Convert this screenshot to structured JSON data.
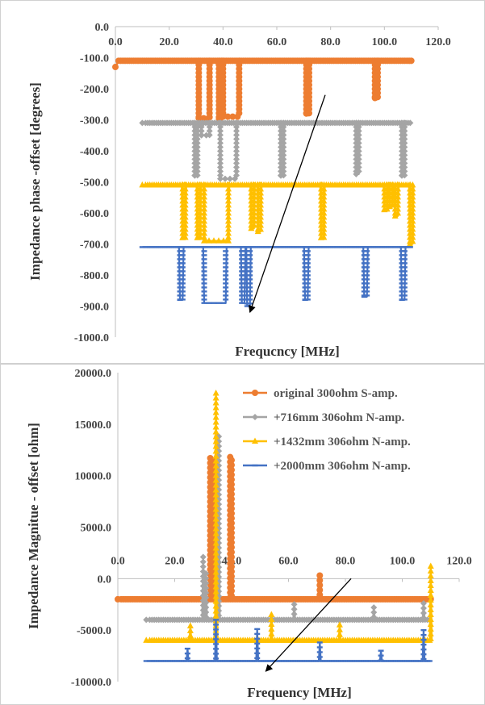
{
  "chart_data": [
    {
      "type": "line",
      "xlabel": "Frequcncy [MHz]",
      "ylabel": "Impedance    phase -offset  [degrees]",
      "xlim": [
        0,
        120
      ],
      "ylim": [
        -1000,
        0
      ],
      "xticks": [
        "0.0",
        "20.0",
        "40.0",
        "60.0",
        "80.0",
        "100.0",
        "120.0"
      ],
      "yticks": [
        "0.0",
        "-100.0",
        "-200.0",
        "-300.0",
        "-400.0",
        "-500.0",
        "-600.0",
        "-700.0",
        "-800.0",
        "-900.0",
        "-1000.0"
      ],
      "legend": "none",
      "annotation": "arrow from (78,-220) to (50,-920)",
      "series": [
        {
          "color": "#ED7D31",
          "marker": "circle",
          "baseline": -110,
          "start": [
            0,
            -130
          ],
          "end": 110,
          "dips": [
            [
              31,
              35,
              -295
            ],
            [
              38.5,
              39.5,
              -300
            ],
            [
              40,
              46,
              -290
            ],
            [
              71,
              72,
              -280
            ],
            [
              96.5,
              97.5,
              -230
            ]
          ]
        },
        {
          "color": "#A5A5A5",
          "marker": "diamond",
          "baseline": -310,
          "start": [
            10,
            -310
          ],
          "end": 110,
          "dips": [
            [
              29.5,
              30.5,
              -480
            ],
            [
              32,
              35,
              -350
            ],
            [
              39,
              45,
              -490
            ],
            [
              61.5,
              62.5,
              -480
            ],
            [
              89.5,
              90.5,
              -475
            ],
            [
              106.5,
              107.5,
              -480
            ]
          ]
        },
        {
          "color": "#FFC000",
          "marker": "triangle",
          "baseline": -510,
          "start": [
            10,
            -510
          ],
          "end": 110,
          "dips": [
            [
              25,
              26,
              -680
            ],
            [
              30.5,
              31.5,
              -680
            ],
            [
              33,
              42,
              -690
            ],
            [
              50.5,
              51.5,
              -650
            ],
            [
              53,
              54,
              -660
            ],
            [
              76.5,
              77.5,
              -680
            ],
            [
              100,
              101,
              -590
            ],
            [
              102,
              103,
              -580
            ],
            [
              104,
              105,
              -610
            ],
            [
              109.5,
              110.5,
              -700
            ]
          ]
        },
        {
          "color": "#4472C4",
          "marker": "dash",
          "baseline": -710,
          "start": [
            10,
            -710
          ],
          "end": 110,
          "dips": [
            [
              24,
              25,
              -880
            ],
            [
              33,
              41,
              -890
            ],
            [
              47,
              48,
              -890
            ],
            [
              49,
              50,
              -900
            ],
            [
              70.5,
              71.5,
              -880
            ],
            [
              92.5,
              93.5,
              -870
            ],
            [
              106.5,
              107.5,
              -880
            ]
          ]
        }
      ]
    },
    {
      "type": "line",
      "xlabel": "Frequency [MHz]",
      "ylabel": "Impedance    Magnitue - offset [ohm]",
      "xlim": [
        0,
        120
      ],
      "ylim": [
        -10000,
        20000
      ],
      "xticks": [
        "0.0",
        "20.0",
        "40.0",
        "60.0",
        "80.0",
        "100.0",
        "120.0"
      ],
      "yticks": [
        "20000.0",
        "15000.0",
        "10000.0",
        "5000.0",
        "0.0",
        "-5000.0",
        "-10000.0"
      ],
      "legend": "top-right",
      "annotation": "arrow from (82,0) to (52,-9000)",
      "series": [
        {
          "name": "original 300ohm S-amp.",
          "color": "#ED7D31",
          "marker": "circle",
          "baseline": -2000,
          "start": [
            0,
            -2000
          ],
          "end": 110,
          "spikes": [
            [
              32.5,
              11700
            ],
            [
              33.5,
              11500
            ],
            [
              35,
              13800
            ],
            [
              39.5,
              11800
            ],
            [
              40,
              11500
            ],
            [
              71,
              300
            ]
          ]
        },
        {
          "name": "+716mm 306ohm N-amp.",
          "color": "#A5A5A5",
          "marker": "diamond",
          "baseline": -4000,
          "start": [
            10,
            -4000
          ],
          "end": 110,
          "spikes": [
            [
              30,
              2100
            ],
            [
              31,
              500
            ],
            [
              35.5,
              13800
            ],
            [
              62,
              -2500
            ],
            [
              90,
              -2800
            ],
            [
              107.5,
              -2400
            ]
          ]
        },
        {
          "name": "+1432mm 306ohm N-amp.",
          "color": "#FFC000",
          "marker": "triangle",
          "baseline": -6000,
          "start": [
            10,
            -6000
          ],
          "end": 110,
          "spikes": [
            [
              25.5,
              -4600
            ],
            [
              34.5,
              18000
            ],
            [
              54,
              -3500
            ],
            [
              78,
              -4500
            ],
            [
              110,
              1200
            ]
          ]
        },
        {
          "name": "+2000mm 306ohm N-amp.",
          "color": "#4472C4",
          "marker": "dash",
          "baseline": -8000,
          "start": [
            10,
            -8000
          ],
          "end": 110,
          "spikes": [
            [
              24.5,
              -6800
            ],
            [
              34.5,
              -4000
            ],
            [
              49,
              -4900
            ],
            [
              71,
              -6200
            ],
            [
              92.5,
              -7000
            ],
            [
              107.5,
              -5000
            ]
          ]
        }
      ]
    }
  ]
}
